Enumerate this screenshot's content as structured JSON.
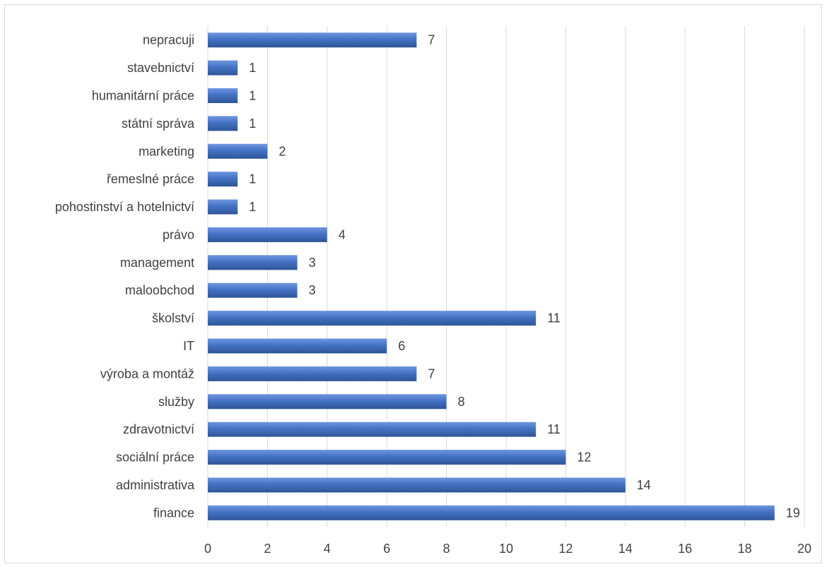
{
  "chart_data": {
    "type": "bar",
    "orientation": "horizontal",
    "categories": [
      "nepracuji",
      "stavebnictví",
      "humanitární práce",
      "státní správa",
      "marketing",
      "řemeslné práce",
      "pohostinství a hotelnictví",
      "právo",
      "management",
      "maloobchod",
      "školství",
      "IT",
      "výroba a montáž",
      "služby",
      "zdravotnictví",
      "sociální práce",
      "administrativa",
      "finance"
    ],
    "values": [
      7,
      1,
      1,
      1,
      2,
      1,
      1,
      4,
      3,
      3,
      11,
      6,
      7,
      8,
      11,
      12,
      14,
      19
    ],
    "xlim": [
      0,
      20
    ],
    "xticks": [
      "0",
      "2",
      "4",
      "6",
      "8",
      "10",
      "12",
      "14",
      "16",
      "18",
      "20"
    ],
    "grid": "vertical",
    "data_labels": true,
    "colors": {
      "bar_top": "#6f96e0",
      "bar_mid": "#4472c4",
      "bar_bottom": "#2f5597",
      "grid": "#d9d9d9",
      "text": "#404040"
    }
  }
}
